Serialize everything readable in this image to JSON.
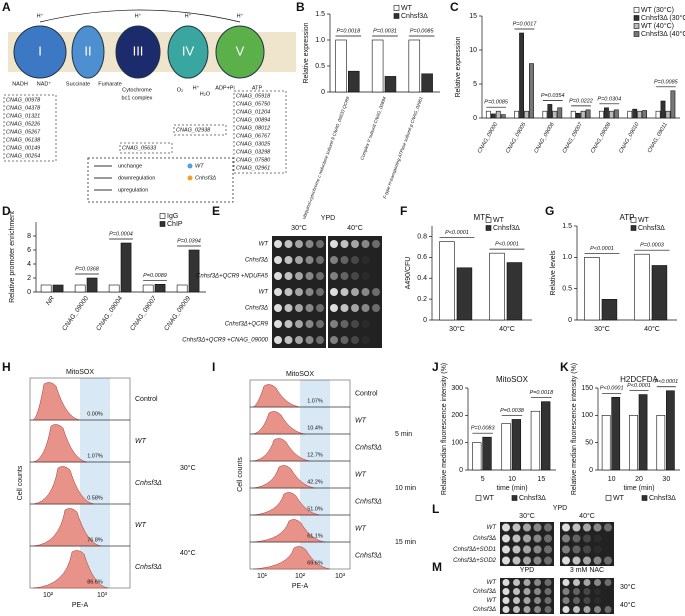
{
  "panel_labels": [
    "A",
    "B",
    "C",
    "D",
    "E",
    "F",
    "G",
    "H",
    "I",
    "J",
    "K",
    "L",
    "M"
  ],
  "diagram": {
    "complexes": [
      "I",
      "II",
      "III",
      "IV",
      "V"
    ],
    "molecules": [
      "NADH",
      "NAD⁺",
      "Succinate",
      "Fumarate",
      "Cytochrome",
      "bc1 complex",
      "O₂",
      "H⁺",
      "H₂O",
      "ADP+Pi",
      "ATP",
      "H⁺",
      "H⁺",
      "H⁺",
      "H⁺"
    ],
    "gene_lists": [
      [
        "CNAG_00978",
        "CNAG_04378",
        "CNAG_01321",
        "CNAG_05226",
        "CNAG_05267",
        "CNAG_06138",
        "CNAG_00149",
        "CNAG_00254"
      ],
      [
        "CNAG_05633"
      ],
      [
        "CNAG_02938"
      ],
      [
        "CNAG_05918",
        "CNAG_05750",
        "CNAG_01204",
        "CNAG_00894",
        "CNAG_08012",
        "CNAG_06767",
        "CNAG_03025",
        "CNAG_03298",
        "CNAG_07580",
        "CNAG_02961"
      ]
    ],
    "legend": {
      "changes": [
        "unchange",
        "downregulation",
        "upregulation"
      ],
      "strains": [
        "WT",
        "Cnhsf3Δ"
      ]
    }
  },
  "chart_data": [
    {
      "type": "bar",
      "y_label": "Relative expression",
      "categories": [
        "ubiquinol-cytochrome c reductase subunit 9 CNAG_05633 QCR9",
        "Complex V subunit CNAG_00894",
        "F-type H-transporting ATPase subunit g CNAG_02961"
      ],
      "series": [
        {
          "name": "WT",
          "color": "#ffffff",
          "values": [
            1,
            1,
            1
          ]
        },
        {
          "name": "Cnhsf3Δ",
          "color": "#333333",
          "values": [
            0.4,
            0.3,
            0.35
          ]
        }
      ],
      "annotations": [
        "P=0.0018",
        "P=0.0031",
        "P=0.0085"
      ],
      "ylim": [
        0,
        1.5
      ],
      "yticks": [
        0,
        {
          "value": 0.5,
          "label": "0.5"
        },
        {
          "value": 1,
          "label": "1.0"
        },
        {
          "value": 1.5,
          "label": "1.5"
        }
      ],
      "legend": "top-right"
    },
    {
      "type": "bar",
      "y_label": "Relative expression",
      "categories": [
        "CNAG_09000",
        "CNAG_09005",
        "CNAG_09006",
        "CNAG_09007",
        "CNAG_09008",
        "CNAG_09010",
        "CNAG_09011"
      ],
      "series": [
        {
          "name": "WT (30°C)",
          "color": "#ffffff",
          "values": [
            1,
            1,
            1,
            1,
            1,
            1,
            1
          ]
        },
        {
          "name": "Cnhsf3Δ (30°C)",
          "color": "#333333",
          "values": [
            0.6,
            12.5,
            2,
            0.7,
            1.5,
            1.3,
            2.5
          ]
        },
        {
          "name": "WT (40°C)",
          "color": "#bbbbbb",
          "values": [
            1,
            1,
            1,
            1,
            1,
            1,
            1
          ]
        },
        {
          "name": "Cnhsf3Δ (40°C)",
          "color": "#777777",
          "values": [
            0.5,
            8,
            1.5,
            1.2,
            1.2,
            1.1,
            4
          ]
        }
      ],
      "annotations": [
        "P=0.0085",
        "P=0.0017",
        "P=0.0354",
        "P=0.0222",
        "P=0.0304",
        null,
        "P=0.0085"
      ],
      "ylim": [
        0,
        15
      ],
      "yticks": [
        0,
        5,
        10,
        15
      ],
      "legend": "top-right"
    },
    {
      "type": "bar",
      "y_label": "Relative promoter enrichment",
      "categories": [
        "NR",
        "CNAG_09000",
        "CNAG_09004",
        "CNAG_09007",
        "CNAG_09009"
      ],
      "series": [
        {
          "name": "IgG",
          "color": "#ffffff",
          "values": [
            1,
            1,
            1,
            1,
            1
          ]
        },
        {
          "name": "ChIP",
          "color": "#333333",
          "values": [
            1,
            2,
            7,
            1.1,
            6
          ]
        }
      ],
      "annotations": [
        null,
        "P=0.0368",
        "P=0.0004",
        "P=0.0089",
        "P=0.0394"
      ],
      "ylim": [
        0,
        10
      ],
      "yticks": [
        0,
        2,
        4,
        6,
        8
      ],
      "legend": "top-right"
    },
    {
      "type": "bar",
      "title": "MTS",
      "y_label": "A490/CFU",
      "categories": [
        "30°C",
        "40°C"
      ],
      "series": [
        {
          "name": "WT",
          "color": "#ffffff",
          "values": [
            0.75,
            0.64
          ]
        },
        {
          "name": "Cnhsf3Δ",
          "color": "#333333",
          "values": [
            0.5,
            0.55
          ]
        }
      ],
      "annotations": [
        "P<0.0001",
        "P<0.0001"
      ],
      "ylim": [
        0,
        0.9
      ],
      "yticks": [
        0,
        0.2,
        0.4,
        0.6,
        0.8
      ],
      "legend": "top-right"
    },
    {
      "type": "bar",
      "title": "ATP",
      "y_label": "Relative levels",
      "categories": [
        "30°C",
        "40°C"
      ],
      "series": [
        {
          "name": "WT",
          "color": "#ffffff",
          "values": [
            1,
            1.05
          ]
        },
        {
          "name": "Cnhsf3Δ",
          "color": "#333333",
          "values": [
            0.33,
            0.87
          ]
        }
      ],
      "annotations": [
        "P<0.0001",
        "P=0.0003"
      ],
      "ylim": [
        0,
        1.5
      ],
      "yticks": [
        0,
        {
          "value": 0.5,
          "label": "0.5"
        },
        {
          "value": 1,
          "label": "1.0"
        },
        {
          "value": 1.5,
          "label": "1.5"
        }
      ],
      "legend": "top-right"
    },
    {
      "type": "bar",
      "title": "MitoSOX",
      "y_label": "Relative median fluorescence intensity (%)",
      "x_label": "time (min)",
      "categories": [
        "5",
        "10",
        "15"
      ],
      "series": [
        {
          "name": "WT",
          "color": "#ffffff",
          "values": [
            100,
            170,
            215
          ]
        },
        {
          "name": "Cnhsf3Δ",
          "color": "#333333",
          "values": [
            120,
            185,
            250
          ]
        }
      ],
      "annotations": [
        "P=0.0083",
        "P=0.0038",
        "P=0.0018"
      ],
      "ylim": [
        0,
        300
      ],
      "yticks": [
        0,
        100,
        200,
        300
      ],
      "legend": "bottom"
    },
    {
      "type": "bar",
      "title": "H2DCFDA",
      "y_label": "Relative median fluorescence intensity (%)",
      "x_label": "time (min)",
      "categories": [
        "10",
        "20",
        "30"
      ],
      "series": [
        {
          "name": "WT",
          "color": "#ffffff",
          "values": [
            100,
            100,
            100
          ]
        },
        {
          "name": "Cnhsf3Δ",
          "color": "#333333",
          "values": [
            133,
            138,
            145
          ]
        }
      ],
      "annotations": [
        "P<0.0001",
        "P<0.0001",
        "P<0.0001"
      ],
      "ylim": [
        0,
        150
      ],
      "yticks": [
        0,
        50,
        100,
        150
      ],
      "legend": "bottom"
    }
  ],
  "spot_assays": {
    "E": {
      "medium": "YPD",
      "temps": [
        "30°C",
        "40°C"
      ],
      "strains": [
        "WT",
        "Cnhsf3Δ",
        "Cnhsf3Δ+QCR9 +NDUFA5",
        "WT",
        "Cnhsf3Δ",
        "Cnhsf3Δ+QCR9",
        "Cnhsf3Δ+QCR9 +CNAG_09000"
      ]
    },
    "L": {
      "medium": "YPD",
      "temps": [
        "30°C",
        "40°C"
      ],
      "strains": [
        "WT",
        "Cnhsf3Δ",
        "Cnhsf3Δ+SOD1",
        "Cnhsf3Δ+SOD2"
      ]
    },
    "M": {
      "media": [
        "YPD",
        "3 mM NAC"
      ],
      "temps": [
        "30°C",
        "40°C"
      ],
      "strains": [
        "WT",
        "Cnhsf3Δ",
        "WT",
        "Cnhsf3Δ"
      ]
    }
  },
  "flow_panels": {
    "H": {
      "title": "MitoSOX",
      "x_label": "PE-A",
      "y_label": "Cell counts",
      "xticks": [
        "10²",
        "10³"
      ],
      "rows": [
        {
          "label": "Control",
          "percent": "0.00%"
        },
        {
          "label": "WT",
          "percent": "1.07%"
        },
        {
          "label": "Cnhsf3Δ",
          "percent": "0.58%"
        },
        {
          "label": "WT",
          "percent": "76.8%"
        },
        {
          "label": "Cnhsf3Δ",
          "percent": "86.6%"
        }
      ],
      "temps": [
        "30°C",
        "40°C"
      ]
    },
    "I": {
      "title": "MitoSOX",
      "x_label": "PE-A",
      "y_label": "Cell counts",
      "xticks": [
        "10¹",
        "10²",
        "10³"
      ],
      "rows": [
        {
          "label": "Control",
          "percent": "1.07%"
        },
        {
          "label": "WT",
          "percent": "10.4%"
        },
        {
          "label": "Cnhsf3Δ",
          "percent": "12.7%"
        },
        {
          "label": "WT",
          "percent": "42.2%"
        },
        {
          "label": "Cnhsf3Δ",
          "percent": "51.0%"
        },
        {
          "label": "WT",
          "percent": "61.1%"
        },
        {
          "label": "Cnhsf3Δ",
          "percent": "69.6%"
        }
      ],
      "times": [
        "5 min",
        "10 min",
        "15 min"
      ]
    }
  }
}
